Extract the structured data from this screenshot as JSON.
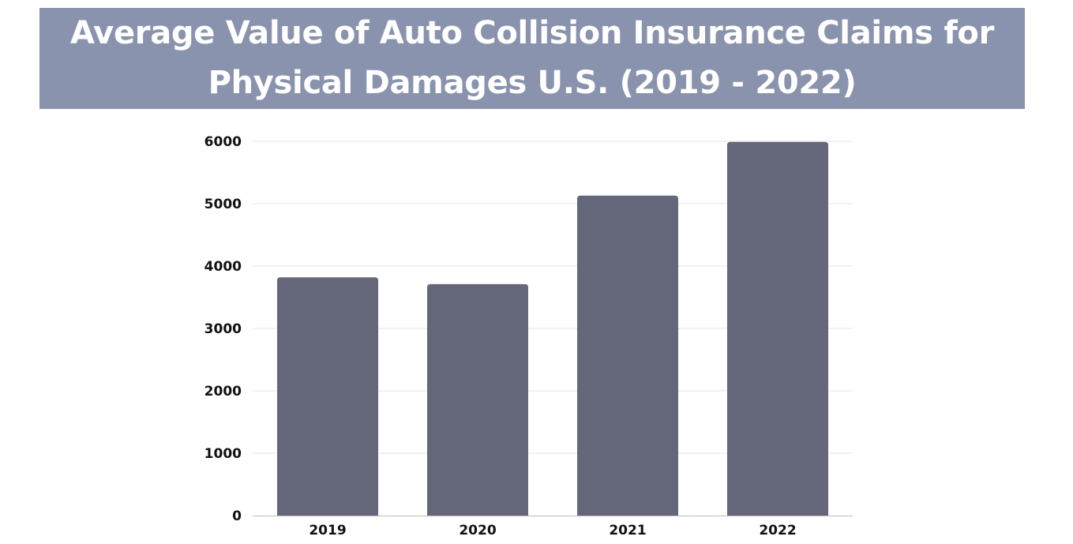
{
  "chart_data": {
    "type": "bar",
    "title": "Average Value of Auto Collision Insurance Claims for Physical Damages U.S. (2019 - 2022)",
    "categories": [
      "2019",
      "2020",
      "2021",
      "2022"
    ],
    "values": [
      3820,
      3710,
      5130,
      5990
    ],
    "xlabel": "",
    "ylabel": "",
    "ylim": [
      0,
      6000
    ],
    "yticks": [
      "0",
      "1000",
      "2000",
      "3000",
      "4000",
      "5000",
      "6000"
    ],
    "grid": true,
    "legend": "none",
    "bar_color": "#636779",
    "banner_color": "#8a93ad",
    "gridline_color": "#e6e6e6"
  }
}
